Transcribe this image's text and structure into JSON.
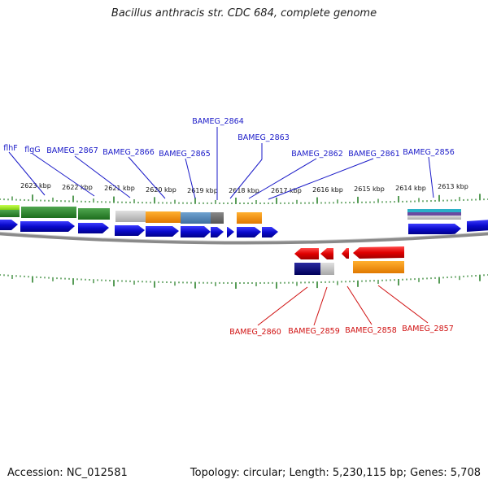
{
  "title": "Bacillus anthracis str. CDC 684, complete genome",
  "footer": {
    "accession": "Accession: NC_012581",
    "stats": "Topology: circular; Length: 5,230,115 bp; Genes: 5,708"
  },
  "scale_labels": [
    "2623 kbp",
    "2622 kbp",
    "2621 kbp",
    "2620 kbp",
    "2619 kbp",
    "2618 kbp",
    "2617 kbp",
    "2616 kbp",
    "2615 kbp",
    "2614 kbp",
    "2613 kbp"
  ],
  "forward_gene_labels": [
    "flhF",
    "flgG",
    "BAMEG_2867",
    "BAMEG_2866",
    "BAMEG_2865",
    "BAMEG_2864",
    "BAMEG_2863",
    "BAMEG_2862",
    "BAMEG_2861",
    "BAMEG_2856"
  ],
  "reverse_gene_labels": [
    "BAMEG_2860",
    "BAMEG_2859",
    "BAMEG_2858",
    "BAMEG_2857"
  ],
  "colors": {
    "forward_gene": "#1010e0",
    "reverse_gene": "#e01010",
    "forward_label": "#1a1ac8",
    "reverse_label": "#d01010",
    "tick": "#1f7a1f",
    "backbone": "#8a8a8a"
  }
}
